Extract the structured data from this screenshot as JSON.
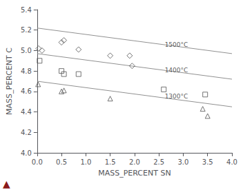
{
  "chart_data": {
    "type": "scatter",
    "xlabel": "MASS_PERCENT SN",
    "ylabel": "MASS_PERCENT C",
    "xlim": [
      0.0,
      4.0
    ],
    "ylim": [
      4.0,
      5.4
    ],
    "xticks": [
      {
        "value": 0.0,
        "label": "0.0"
      },
      0.5,
      {
        "value": 1.0,
        "label": "1.0"
      },
      1.5,
      {
        "value": 2.0,
        "label": "2.0"
      },
      2.5,
      {
        "value": 3.0,
        "label": "3.0"
      },
      3.5,
      {
        "value": 4.0,
        "label": "4.0"
      }
    ],
    "yticks": [
      {
        "value": 4.0,
        "label": "4.0"
      },
      4.2,
      4.4,
      4.6,
      4.8,
      {
        "value": 5.0,
        "label": "5.0"
      },
      5.2,
      5.4
    ],
    "grid": false,
    "series": [
      {
        "type": "line",
        "x": [
          0.0,
          4.0
        ],
        "values": [
          5.22,
          4.97
        ],
        "color": "#909090"
      },
      {
        "type": "line",
        "x": [
          0.0,
          4.0
        ],
        "values": [
          4.97,
          4.72
        ],
        "color": "#909090"
      },
      {
        "type": "line",
        "x": [
          0.0,
          4.0
        ],
        "values": [
          4.7,
          4.45
        ],
        "color": "#909090"
      },
      {
        "type": "scatter",
        "marker": "diamond",
        "color": "#505050",
        "x": [
          0.03,
          0.1,
          0.5,
          0.55,
          0.85,
          1.5,
          1.9,
          1.95
        ],
        "values": [
          5.02,
          5.0,
          5.08,
          5.1,
          5.01,
          4.95,
          4.95,
          4.85
        ]
      },
      {
        "type": "scatter",
        "marker": "square",
        "color": "#505050",
        "x": [
          0.05,
          0.5,
          0.55,
          0.85,
          2.6,
          3.45
        ],
        "values": [
          4.9,
          4.8,
          4.77,
          4.77,
          4.62,
          4.57
        ]
      },
      {
        "type": "scatter",
        "marker": "triangle",
        "color": "#505050",
        "x": [
          0.02,
          0.5,
          0.55,
          1.5,
          3.4,
          3.5
        ],
        "values": [
          4.67,
          4.6,
          4.61,
          4.53,
          4.43,
          4.36
        ]
      }
    ],
    "annotations": [
      {
        "text": "1500°C",
        "x": 2.62,
        "y": 5.055
      },
      {
        "text": "1400°C",
        "x": 2.62,
        "y": 4.805
      },
      {
        "text": "1300°C",
        "x": 2.62,
        "y": 4.555
      },
      {
        "text": "▲",
        "color": "#8B1A1A"
      }
    ]
  }
}
